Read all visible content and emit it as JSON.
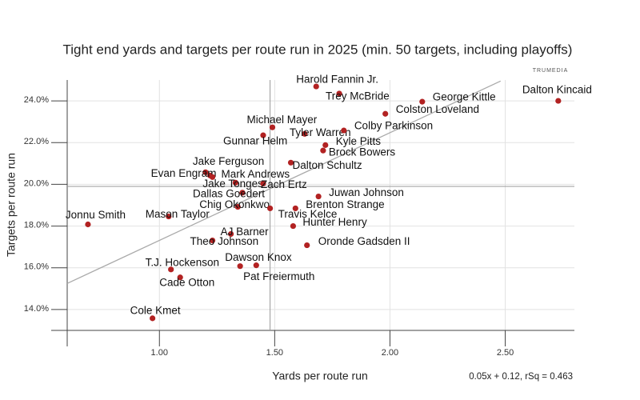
{
  "chart_data": {
    "type": "scatter",
    "title": "Tight end yards and targets per route run in 2025 (min. 50 targets, including playoffs)",
    "x_label": "Yards per route run",
    "y_label": "Targets per route run",
    "annotation": "0.05x + 0.12, rSq = 0.463",
    "logo": "TRUMEDIA",
    "color": "#b22222",
    "labels": [
      "Harold Fannin Jr.",
      "Trey McBride",
      "George Kittle",
      "Dalton Kincaid",
      "Colston Loveland",
      "Michael Mayer",
      "Gunnar Helm",
      "Tyler Warren",
      "Colby Parkinson",
      "Kyle Pitts",
      "Brock Bowers",
      "Dalton Schultz",
      "Jake Ferguson",
      "Evan Engram",
      "Mark Andrews",
      "Jake Tonges",
      "Zach Ertz",
      "Dallas Goedert",
      "Chig Okonkwo",
      "Juwan Johnson",
      "Brenton Strange",
      "Travis Kelce",
      "Hunter Henry",
      "Jonnu Smith",
      "Mason Taylor",
      "AJ Barner",
      "Theo Johnson",
      "Oronde Gadsden II",
      "Dawson Knox",
      "Pat Freiermuth",
      "T.J. Hockenson",
      "Cade Otton",
      "Cole Kmet"
    ],
    "x": [
      1.68,
      1.78,
      2.14,
      2.73,
      1.98,
      1.49,
      1.45,
      1.63,
      1.8,
      1.72,
      1.71,
      1.57,
      1.2,
      1.22,
      1.23,
      1.33,
      1.45,
      1.36,
      1.34,
      1.69,
      1.59,
      1.48,
      1.58,
      0.69,
      1.04,
      1.31,
      1.23,
      1.64,
      1.42,
      1.35,
      1.05,
      1.09,
      0.97
    ],
    "values": [
      24.69,
      24.35,
      23.96,
      24.0,
      23.38,
      22.73,
      22.35,
      22.42,
      22.58,
      21.88,
      21.62,
      21.04,
      20.58,
      20.42,
      20.35,
      20.08,
      20.04,
      19.6,
      18.92,
      19.42,
      18.85,
      18.85,
      18.0,
      18.08,
      18.46,
      17.62,
      17.31,
      17.08,
      16.12,
      16.08,
      15.92,
      15.54,
      13.58
    ],
    "xlim": [
      0.6,
      2.8
    ],
    "ylim": [
      13,
      25
    ],
    "xticks": [
      {
        "value": 1,
        "label": "1.00"
      },
      {
        "value": 1.5,
        "label": "1.50"
      },
      {
        "value": 2,
        "label": "2.00"
      },
      {
        "value": 2.5,
        "label": "2.50"
      }
    ],
    "yticks": [
      {
        "value": 14,
        "label": "14.0%"
      },
      {
        "value": 16,
        "label": "16.0%"
      },
      {
        "value": 18,
        "label": "18.0%"
      },
      {
        "value": 20,
        "label": "20.0%"
      },
      {
        "value": 22,
        "label": "22.0%"
      },
      {
        "value": 24,
        "label": "24.0%"
      }
    ],
    "trendline": {
      "x": [
        0.6,
        2.48
      ],
      "y": [
        15.25,
        24.95
      ]
    },
    "mean_x": 1.48,
    "mean_y": 19.9,
    "grid": true
  }
}
